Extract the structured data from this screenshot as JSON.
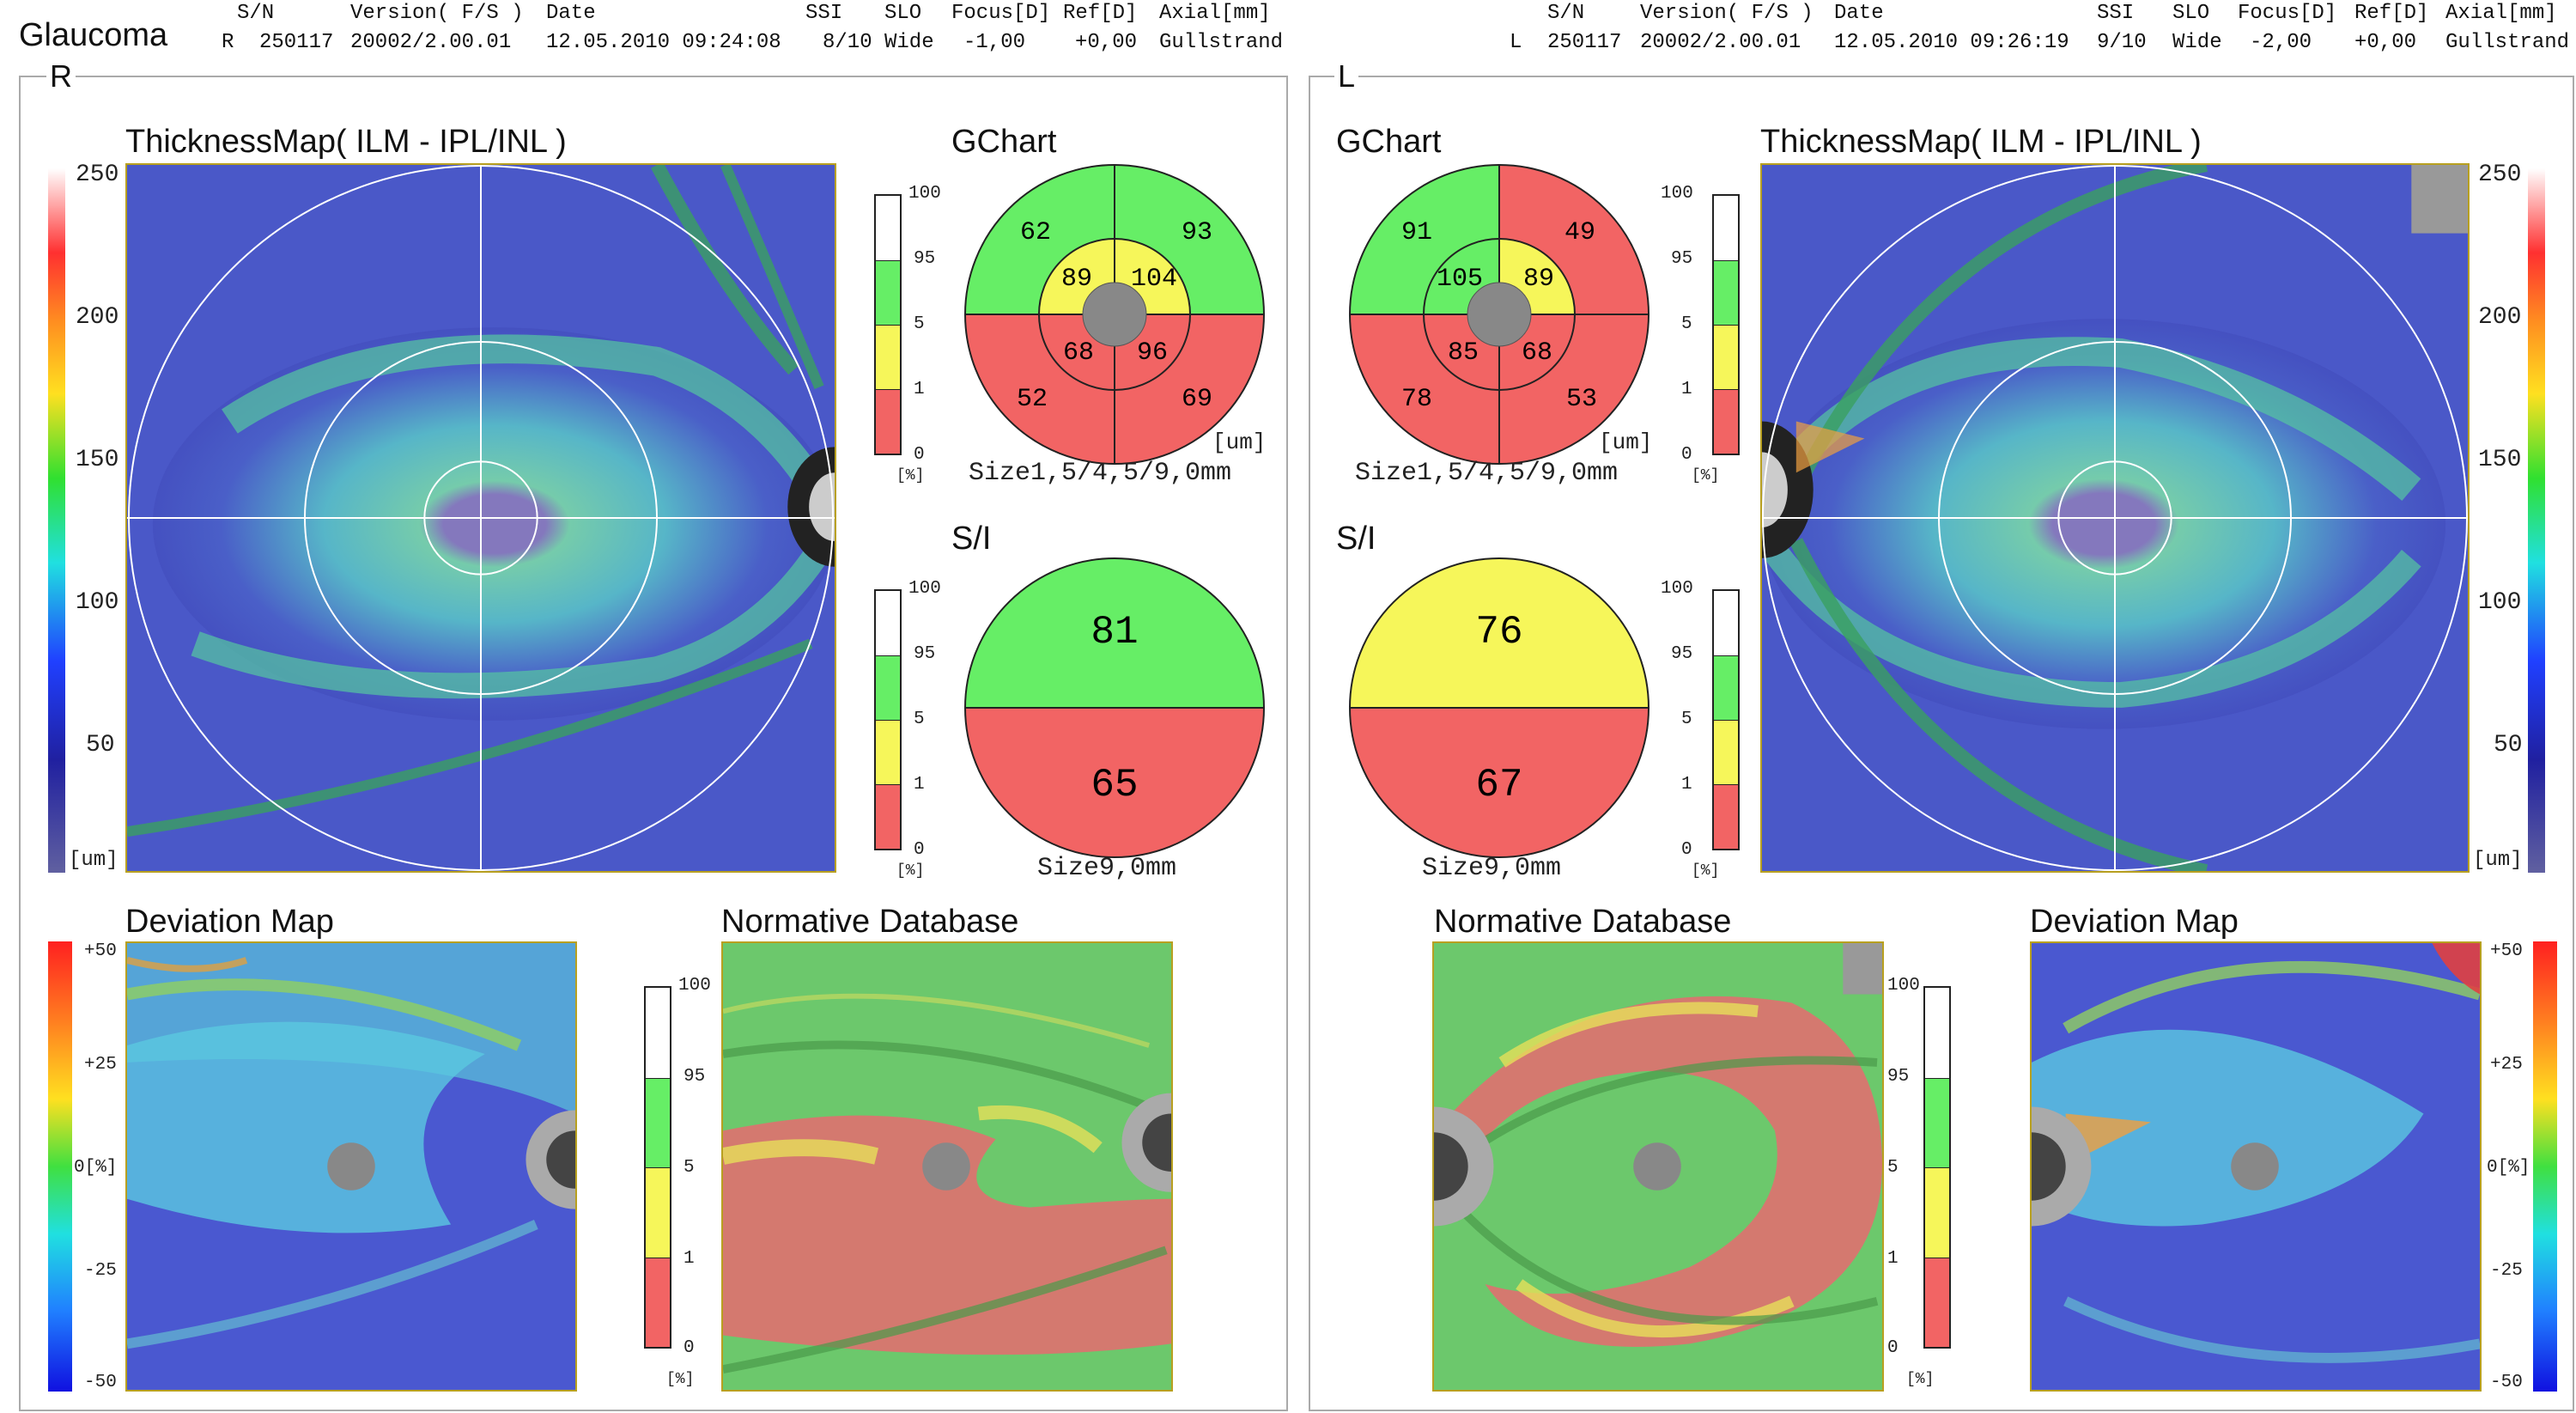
{
  "header": {
    "title": "Glaucoma",
    "right_eye": {
      "col_labels": [
        "S/N",
        "Version( F/S )",
        "Date",
        "SSI",
        "SLO",
        "Focus[D]",
        "Ref[D]",
        "Axial[mm]"
      ],
      "eye": "R",
      "sn": "250117",
      "version": "20002/2.00.01",
      "date": "12.05.2010 09:24:08",
      "ssi": "8/10",
      "slo": "Wide",
      "focus": "-1,00",
      "ref": "+0,00",
      "axial": "Gullstrand"
    },
    "left_eye": {
      "col_labels": [
        "S/N",
        "Version( F/S )",
        "Date",
        "SSI",
        "SLO",
        "Focus[D]",
        "Ref[D]",
        "Axial[mm]"
      ],
      "eye": "L",
      "sn": "250117",
      "version": "20002/2.00.01",
      "date": "12.05.2010 09:26:19",
      "ssi": "9/10",
      "slo": "Wide",
      "focus": "-2,00",
      "ref": "+0,00",
      "axial": "Gullstrand"
    }
  },
  "right_panel": {
    "eye_label": "R",
    "thickness_title": "ThicknessMap( ILM - IPL/INL )",
    "thickness_scale": [
      "250",
      "200",
      "150",
      "100",
      "50"
    ],
    "thickness_unit": "[um]",
    "gchart_title": "GChart",
    "gchart": {
      "outer": [
        "62",
        "93",
        "52",
        "69"
      ],
      "inner": [
        "89",
        "104",
        "68",
        "96"
      ],
      "unit": "[um]",
      "size": "Size1,5/4,5/9,0mm"
    },
    "si_title": "S/I",
    "si": {
      "sup": "81",
      "inf": "65",
      "size": "Size9,0mm"
    },
    "pct_scale": [
      "100",
      "95",
      "5",
      "1",
      "0"
    ],
    "pct_unit": "[%]",
    "deviation_title": "Deviation Map",
    "deviation_scale": [
      "+50",
      "+25",
      "0[%]",
      "-25",
      "-50"
    ],
    "normative_title": "Normative Database"
  },
  "left_panel": {
    "eye_label": "L",
    "thickness_title": "ThicknessMap( ILM - IPL/INL )",
    "thickness_scale": [
      "250",
      "200",
      "150",
      "100",
      "50"
    ],
    "thickness_unit": "[um]",
    "gchart_title": "GChart",
    "gchart": {
      "outer": [
        "91",
        "49",
        "78",
        "53"
      ],
      "inner": [
        "105",
        "89",
        "85",
        "68"
      ],
      "unit": "[um]",
      "size": "Size1,5/4,5/9,0mm"
    },
    "si_title": "S/I",
    "si": {
      "sup": "76",
      "inf": "67",
      "size": "Size9,0mm"
    },
    "pct_scale": [
      "100",
      "95",
      "5",
      "1",
      "0"
    ],
    "pct_unit": "[%]",
    "deviation_title": "Deviation Map",
    "deviation_scale": [
      "+50",
      "+25",
      "0[%]",
      "-25",
      "-50"
    ],
    "normative_title": "Normative Database"
  },
  "colors": {
    "green": "#66ee66",
    "yellow": "#f6f65a",
    "red": "#f26464",
    "white": "#ffffff",
    "retina_blue": "#4a58c8",
    "panel_border": "#aaaaaa"
  },
  "icons": {
    "disc": "optic-disc-shape",
    "fovea": "fovea-dot"
  }
}
